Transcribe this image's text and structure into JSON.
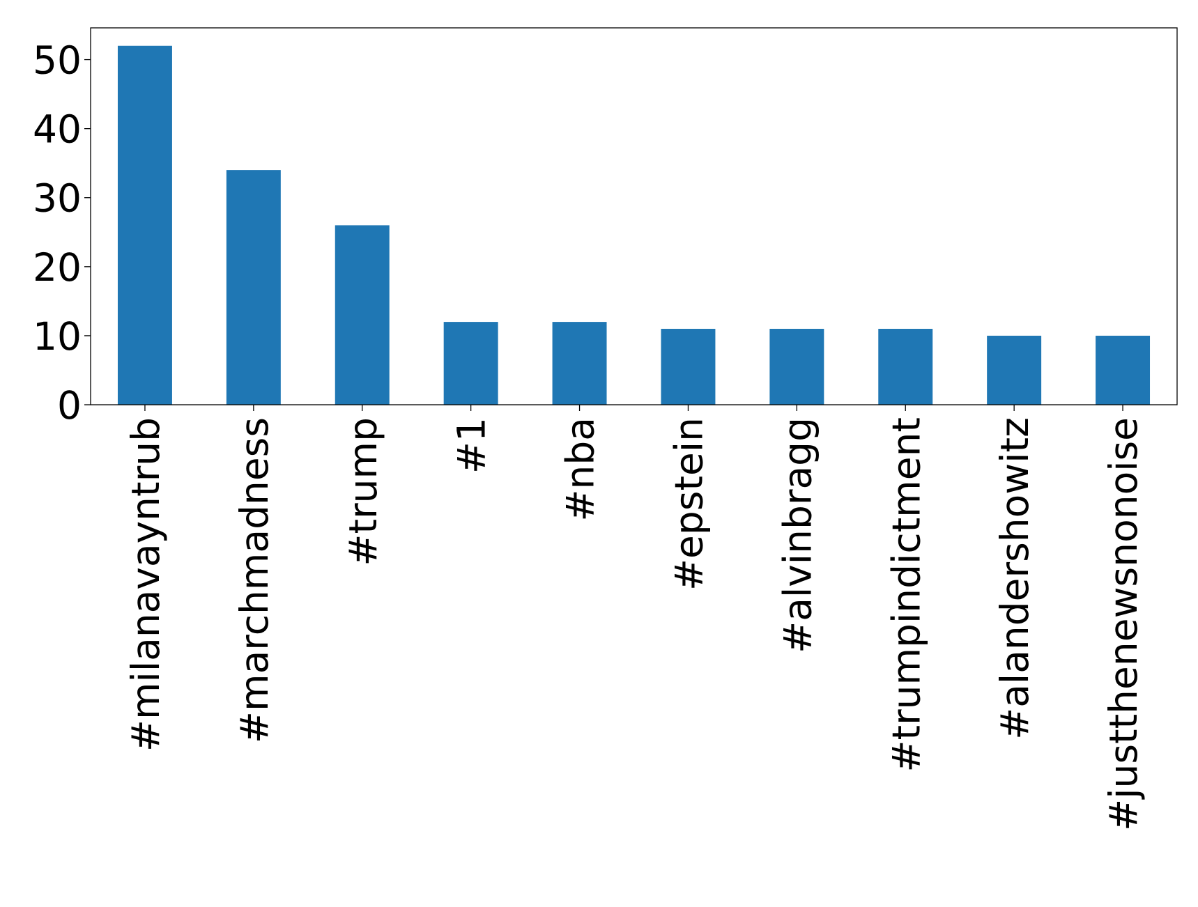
{
  "chart_data": {
    "type": "bar",
    "categories": [
      "#milanavayntrub",
      "#marchmadness",
      "#trump",
      "#1",
      "#nba",
      "#epstein",
      "#alvinbragg",
      "#trumpindictment",
      "#alandershowitz",
      "#justthenewsnonoise"
    ],
    "values": [
      52,
      34,
      26,
      12,
      12,
      11,
      11,
      11,
      10,
      10
    ],
    "title": "",
    "xlabel": "",
    "ylabel": "",
    "ylim": [
      0,
      54.6
    ],
    "yticks": [
      0,
      10,
      20,
      30,
      40,
      50
    ],
    "grid": false,
    "legend": "none",
    "bar_color": "#1f77b4",
    "x_tick_rotation": "vertical"
  }
}
